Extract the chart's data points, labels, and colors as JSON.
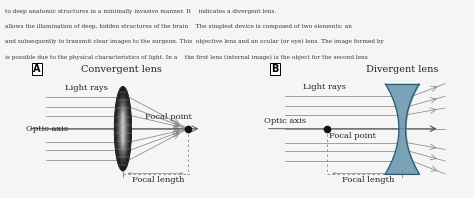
{
  "bg_color": "#f5f5f5",
  "panel_bg": "#ede8dc",
  "text_top_bg": "#ffffff",
  "border_color": "#999999",
  "text_color": "#222222",
  "lens_color_conv_dark": "#1a1a1a",
  "lens_color_conv_light": "#cccccc",
  "lens_color_div": "#5b8fa8",
  "lens_border_div": "#2a5a6e",
  "ray_color": "#888888",
  "dashed_color": "#888888",
  "axis_color": "#555555",
  "focal_point_color": "#111111",
  "title_A": "Convergent lens",
  "title_B": "Divergent lens",
  "label_light_rays": "Light rays",
  "label_optic_axis": "Optic axis",
  "label_focal_point": "Focal point",
  "label_focal_length": "Focal length",
  "font_size": 7.0,
  "label_font_size": 6.0,
  "top_text_lines": [
    "to deep anatomic structures in a minimally invasive manner. It    indicates a divergent lens.",
    "allows the illumination of deep, hidden structures of the brain    The simplest device is composed of two elements: an",
    "and subsequently to transmit clear images to the surgeon. This  objective lens and an ocular (or eye) lens. The image formed by",
    "is possible due to the physical characteristics of light. In a    the first lens (internal image) is the object for the second lens"
  ]
}
